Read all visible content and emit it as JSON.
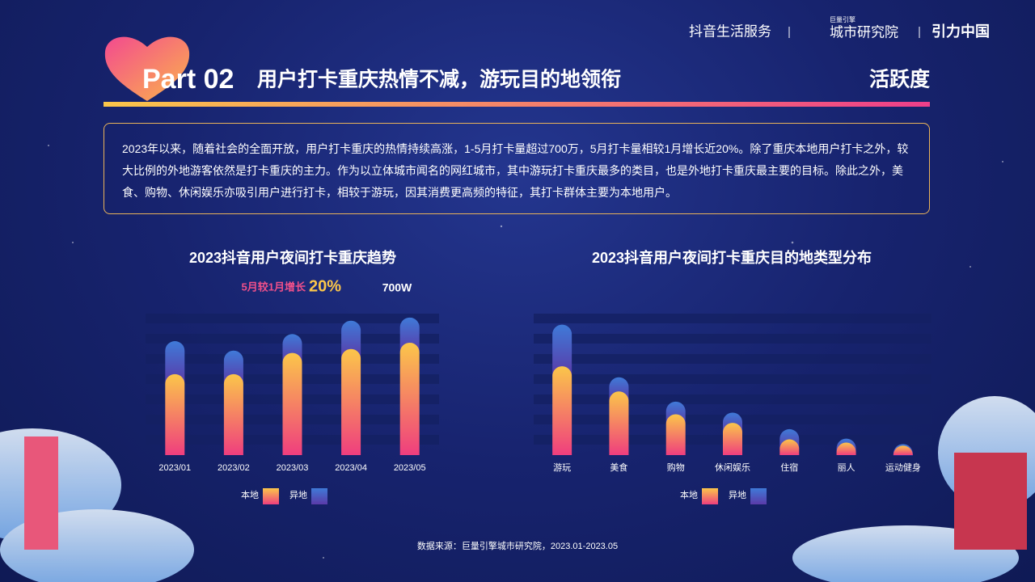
{
  "header": {
    "brand_1": "抖音生活服务",
    "brand_2_small": "巨量引擎",
    "brand_2": "城市研究院",
    "brand_3": "引力中国"
  },
  "title": {
    "part": "Part 02",
    "headline": "用户打卡重庆热情不减，游玩目的地领衔",
    "tag": "活跃度"
  },
  "summary": "2023年以来，随着社会的全面开放，用户打卡重庆的热情持续高涨，1-5月打卡量超过700万，5月打卡量相较1月增长近20%。除了重庆本地用户打卡之外，较大比例的外地游客依然是打卡重庆的主力。作为以立体城市闻名的网红城市，其中游玩打卡重庆最多的类目，也是外地打卡重庆最主要的目标。除此之外，美食、购物、休闲娱乐亦吸引用户进行打卡，相较于游玩，因其消费更高频的特征，其打卡群体主要为本地用户。",
  "source": "数据来源：巨量引擎城市研究院，2023.01-2023.05",
  "chart_data": [
    {
      "type": "bar",
      "stacked": true,
      "title": "2023抖音用户夜间打卡重庆趋势",
      "annotation_label": "5月较1月增长",
      "annotation_value": "20%",
      "total_label": "700W",
      "categories": [
        "2023/01",
        "2023/02",
        "2023/03",
        "2023/04",
        "2023/05"
      ],
      "series": [
        {
          "name": "本地",
          "color": "#fbc64a",
          "values": [
            103,
            103,
            130,
            135,
            143
          ]
        },
        {
          "name": "异地",
          "color": "#3f7ad8",
          "values": [
            42,
            30,
            24,
            36,
            32
          ]
        }
      ],
      "ylim": [
        0,
        180
      ],
      "grid": true,
      "legend": "bottom"
    },
    {
      "type": "bar",
      "stacked": true,
      "title": "2023抖音用户夜间打卡重庆目的地类型分布",
      "categories": [
        "游玩",
        "美食",
        "购物",
        "休闲娱乐",
        "住宿",
        "丽人",
        "运动健身"
      ],
      "series": [
        {
          "name": "本地",
          "color": "#fbc64a",
          "values": [
            113,
            81,
            52,
            41,
            20,
            16,
            12
          ]
        },
        {
          "name": "异地",
          "color": "#3f7ad8",
          "values": [
            53,
            18,
            16,
            13,
            13,
            5,
            2
          ]
        }
      ],
      "ylim": [
        0,
        180
      ],
      "grid": true,
      "legend": "bottom"
    }
  ]
}
